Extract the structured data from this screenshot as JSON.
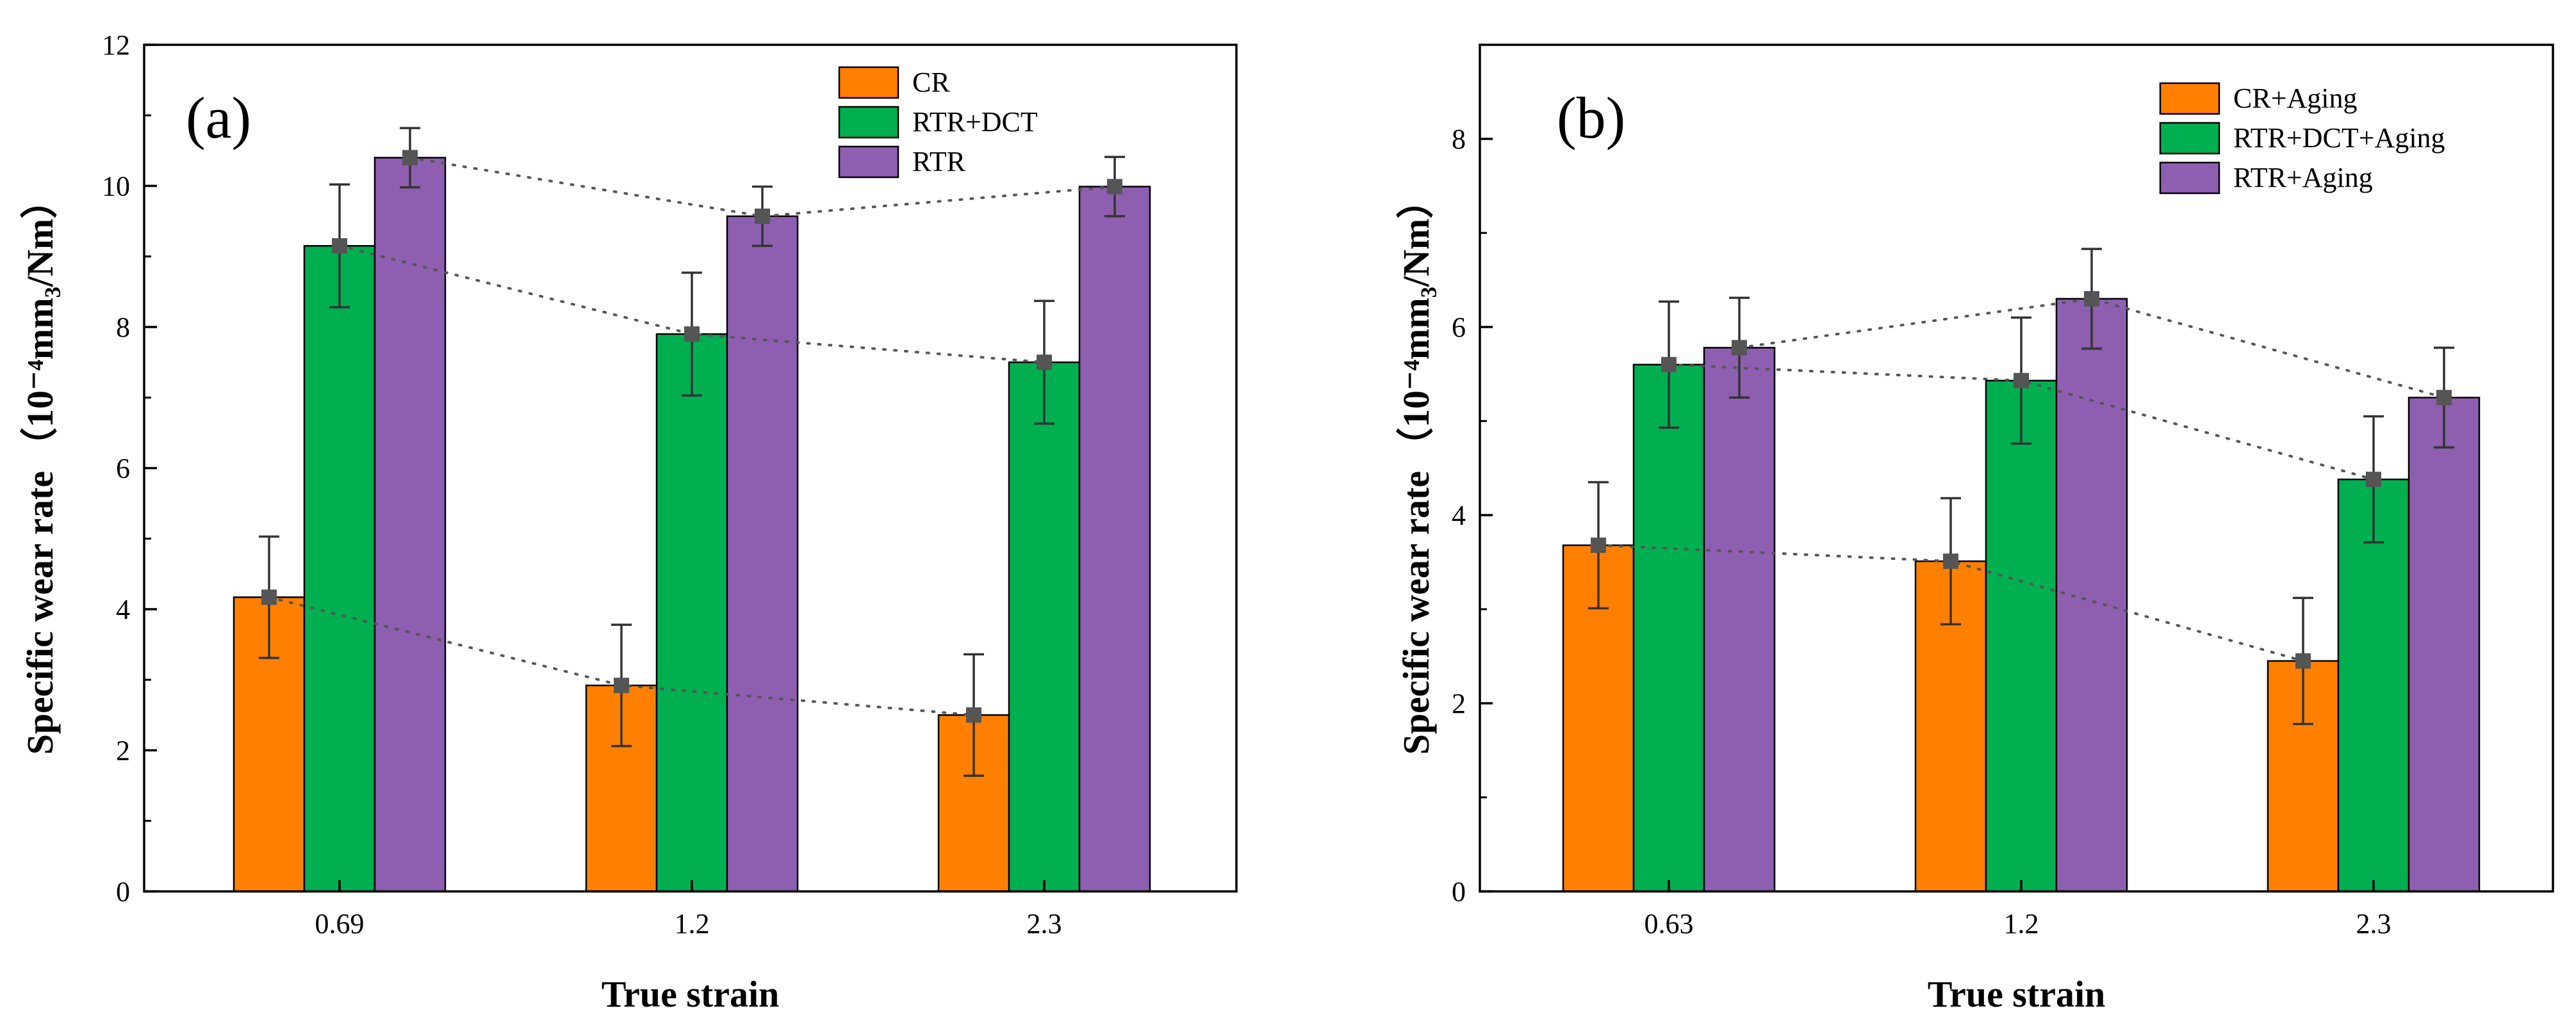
{
  "chart_data": [
    {
      "type": "bar",
      "panel_label": "(a)",
      "categories": [
        "0.69",
        "1.2",
        "2.3"
      ],
      "series": [
        {
          "name": "CR",
          "color": "#ff8000",
          "values": [
            4.17,
            2.92,
            2.5
          ],
          "errors": [
            0.86,
            0.86,
            0.86
          ]
        },
        {
          "name": "RTR+DCT",
          "color": "#00b050",
          "values": [
            9.15,
            7.9,
            7.5
          ],
          "errors": [
            0.87,
            0.87,
            0.87
          ]
        },
        {
          "name": "RTR",
          "color": "#8e5fb0",
          "values": [
            10.4,
            9.57,
            9.99
          ],
          "errors": [
            0.42,
            0.42,
            0.42
          ]
        }
      ],
      "xlabel": "True strain",
      "ylabel_main": "Specific wear rate",
      "ylabel_units": "（10⁻⁴mm₃/Nm）",
      "ylim": [
        0,
        12
      ],
      "yticks": [
        "0",
        "2",
        "4",
        "6",
        "8",
        "10",
        "12"
      ],
      "grid": false,
      "legend": "top-right",
      "trend_lines": "dotted"
    },
    {
      "type": "bar",
      "panel_label": "(b)",
      "categories": [
        "0.63",
        "1.2",
        "2.3"
      ],
      "series": [
        {
          "name": "CR+Aging",
          "color": "#ff8000",
          "values": [
            3.68,
            3.51,
            2.45
          ],
          "errors": [
            0.67,
            0.67,
            0.67
          ]
        },
        {
          "name": "RTR+DCT+Aging",
          "color": "#00b050",
          "values": [
            5.6,
            5.43,
            4.38
          ],
          "errors": [
            0.67,
            0.67,
            0.67
          ]
        },
        {
          "name": "RTR+Aging",
          "color": "#8e5fb0",
          "values": [
            5.78,
            6.3,
            5.25
          ],
          "errors": [
            0.53,
            0.53,
            0.53
          ]
        }
      ],
      "xlabel": "True strain",
      "ylabel_main": "Specific wear rate",
      "ylabel_units": "（10⁻⁴mm₃/Nm）",
      "ylim": [
        0,
        9
      ],
      "yticks": [
        "0",
        "2",
        "4",
        "6",
        "8"
      ],
      "grid": false,
      "legend": "top-right",
      "trend_lines": "dotted"
    }
  ]
}
